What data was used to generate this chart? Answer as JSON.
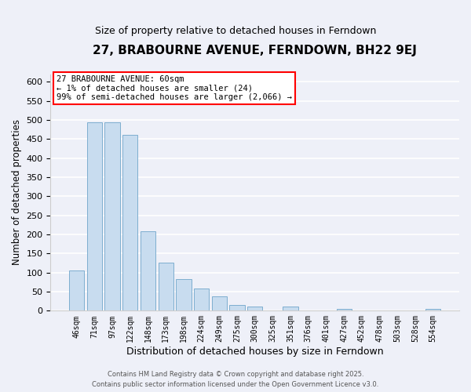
{
  "title": "27, BRABOURNE AVENUE, FERNDOWN, BH22 9EJ",
  "subtitle": "Size of property relative to detached houses in Ferndown",
  "xlabel": "Distribution of detached houses by size in Ferndown",
  "ylabel": "Number of detached properties",
  "bar_color": "#c8dcef",
  "bar_edge_color": "#7eaecf",
  "categories": [
    "46sqm",
    "71sqm",
    "97sqm",
    "122sqm",
    "148sqm",
    "173sqm",
    "198sqm",
    "224sqm",
    "249sqm",
    "275sqm",
    "300sqm",
    "325sqm",
    "351sqm",
    "376sqm",
    "401sqm",
    "427sqm",
    "452sqm",
    "478sqm",
    "503sqm",
    "528sqm",
    "554sqm"
  ],
  "values": [
    105,
    493,
    493,
    460,
    208,
    125,
    83,
    58,
    37,
    15,
    10,
    0,
    10,
    0,
    0,
    5,
    0,
    0,
    0,
    0,
    5
  ],
  "ylim": [
    0,
    620
  ],
  "yticks": [
    0,
    50,
    100,
    150,
    200,
    250,
    300,
    350,
    400,
    450,
    500,
    550,
    600
  ],
  "annotation_title": "27 BRABOURNE AVENUE: 60sqm",
  "annotation_line2": "← 1% of detached houses are smaller (24)",
  "annotation_line3": "99% of semi-detached houses are larger (2,066) →",
  "annotation_box_color": "white",
  "annotation_box_edge": "red",
  "footer1": "Contains HM Land Registry data © Crown copyright and database right 2025.",
  "footer2": "Contains public sector information licensed under the Open Government Licence v3.0.",
  "background_color": "#eef0f8",
  "grid_color": "white",
  "title_fontsize": 11,
  "subtitle_fontsize": 9
}
